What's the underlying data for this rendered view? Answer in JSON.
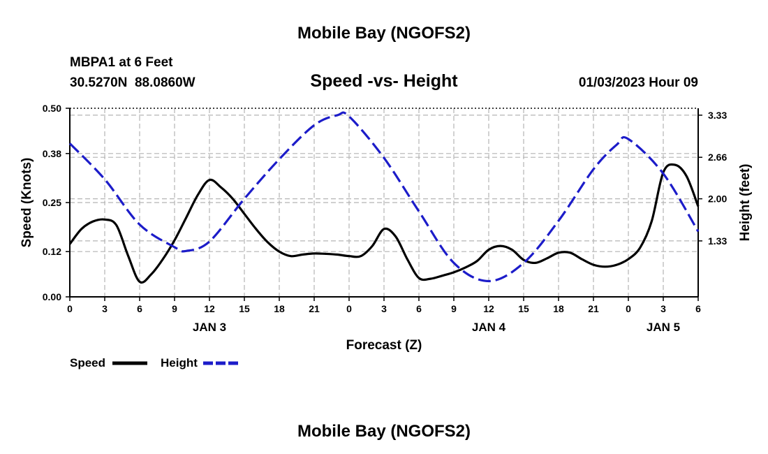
{
  "chart_data": {
    "type": "line",
    "title": "Mobile Bay (NGOFS2)",
    "subtitle": "Speed -vs- Height",
    "footer_title": "Mobile Bay (NGOFS2)",
    "station": "MBPA1 at 6 Feet",
    "coordinates": "30.5270N  88.0860W",
    "timestamp": "01/03/2023 Hour 09",
    "xlabel": "Forecast (Z)",
    "ylabel_left": "Speed (Knots)",
    "ylabel_right": "Height (feet)",
    "x_range_hours": [
      0,
      54
    ],
    "x_ticks": [
      {
        "h": 0,
        "label": "0"
      },
      {
        "h": 3,
        "label": "3"
      },
      {
        "h": 6,
        "label": "6"
      },
      {
        "h": 9,
        "label": "9"
      },
      {
        "h": 12,
        "label": "12"
      },
      {
        "h": 15,
        "label": "15"
      },
      {
        "h": 18,
        "label": "18"
      },
      {
        "h": 21,
        "label": "21"
      },
      {
        "h": 24,
        "label": "0"
      },
      {
        "h": 27,
        "label": "3"
      },
      {
        "h": 30,
        "label": "6"
      },
      {
        "h": 33,
        "label": "9"
      },
      {
        "h": 36,
        "label": "12"
      },
      {
        "h": 39,
        "label": "15"
      },
      {
        "h": 42,
        "label": "18"
      },
      {
        "h": 45,
        "label": "21"
      },
      {
        "h": 48,
        "label": "0"
      },
      {
        "h": 51,
        "label": "3"
      },
      {
        "h": 54,
        "label": "6"
      }
    ],
    "date_labels": [
      {
        "h": 12,
        "label": "JAN 3"
      },
      {
        "h": 36,
        "label": "JAN 4"
      },
      {
        "h": 51,
        "label": "JAN 5"
      }
    ],
    "y_left": {
      "min": 0,
      "max": 0.5,
      "ticks": [
        "0.00",
        "0.12",
        "0.25",
        "0.38",
        "0.50"
      ]
    },
    "y_right": {
      "min": 0.44,
      "max": 3.44,
      "ticks": [
        "1.33",
        "2.00",
        "2.66",
        "3.33"
      ]
    },
    "grid": true,
    "legend_placement": "bottom-left",
    "series": [
      {
        "name": "Speed",
        "axis": "left",
        "color": "#000000",
        "style": "solid",
        "x": [
          0,
          1,
          2,
          3,
          4,
          5,
          6,
          7,
          8,
          9,
          10,
          11,
          12,
          13,
          14,
          15,
          16,
          17,
          18,
          19,
          20,
          21,
          22,
          23,
          24,
          25,
          26,
          27,
          28,
          29,
          30,
          31,
          32,
          33,
          34,
          35,
          36,
          37,
          38,
          39,
          40,
          41,
          42,
          43,
          44,
          45,
          46,
          47,
          48,
          49,
          50,
          51,
          52,
          53,
          54
        ],
        "values": [
          0.14,
          0.18,
          0.2,
          0.205,
          0.19,
          0.11,
          0.04,
          0.06,
          0.1,
          0.15,
          0.21,
          0.27,
          0.31,
          0.29,
          0.26,
          0.22,
          0.18,
          0.145,
          0.12,
          0.108,
          0.112,
          0.115,
          0.114,
          0.112,
          0.108,
          0.108,
          0.135,
          0.18,
          0.16,
          0.1,
          0.05,
          0.048,
          0.056,
          0.065,
          0.078,
          0.095,
          0.125,
          0.135,
          0.125,
          0.098,
          0.09,
          0.102,
          0.117,
          0.117,
          0.1,
          0.085,
          0.08,
          0.085,
          0.1,
          0.13,
          0.2,
          0.33,
          0.35,
          0.32,
          0.24
        ]
      },
      {
        "name": "Height",
        "axis": "right",
        "color": "#1c1cc9",
        "style": "dashed",
        "x": [
          0,
          3,
          6,
          9,
          10,
          12,
          15,
          18,
          21,
          23,
          24,
          27,
          30,
          33,
          36,
          39,
          42,
          45,
          47,
          48,
          51,
          54
        ],
        "values": [
          2.88,
          2.31,
          1.59,
          1.23,
          1.17,
          1.32,
          2.0,
          2.63,
          3.17,
          3.33,
          3.31,
          2.65,
          1.8,
          0.98,
          0.69,
          0.98,
          1.65,
          2.47,
          2.86,
          2.95,
          2.4,
          1.48
        ]
      }
    ]
  }
}
